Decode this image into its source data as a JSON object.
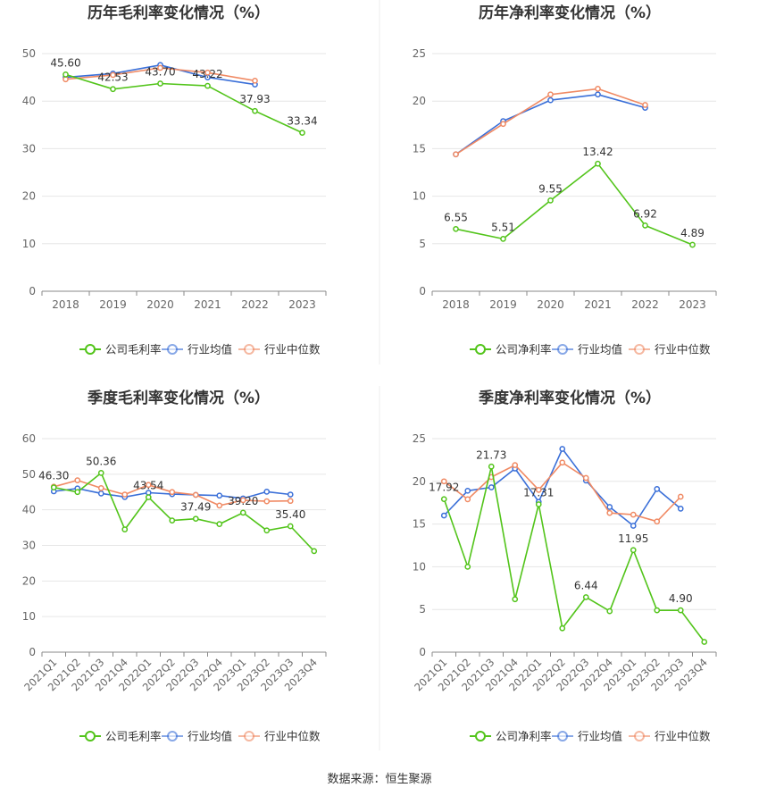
{
  "footer": "数据来源：恒生聚源",
  "colors": {
    "company": "#52c41a",
    "avg": "#3a6fd8",
    "median": "#f08a64"
  },
  "legend_labels": {
    "avg": "行业均值",
    "median": "行业中位数"
  },
  "chart_data": [
    {
      "type": "line",
      "title": "历年毛利率变化情况（%）",
      "categories": [
        "2018",
        "2019",
        "2020",
        "2021",
        "2022",
        "2023"
      ],
      "ylim": [
        0,
        50
      ],
      "yticks": [
        0,
        10,
        20,
        30,
        40,
        50
      ],
      "legend": "bottom",
      "grid": true,
      "series": [
        {
          "name": "公司毛利率",
          "key": "company",
          "values": [
            45.6,
            42.53,
            43.7,
            43.22,
            37.93,
            33.34
          ]
        },
        {
          "name": "行业均值",
          "key": "avg",
          "values": [
            45.0,
            45.8,
            47.6,
            45.0,
            43.5,
            null
          ]
        },
        {
          "name": "行业中位数",
          "key": "median",
          "values": [
            44.6,
            45.5,
            47.0,
            46.0,
            44.3,
            null
          ]
        }
      ],
      "labels": [
        {
          "i": 0,
          "text": "45.60"
        },
        {
          "i": 1,
          "text": "42.53"
        },
        {
          "i": 2,
          "text": "43.70"
        },
        {
          "i": 3,
          "text": "43.22"
        },
        {
          "i": 4,
          "text": "37.93"
        },
        {
          "i": 5,
          "text": "33.34"
        }
      ]
    },
    {
      "type": "line",
      "title": "历年净利率变化情况（%）",
      "categories": [
        "2018",
        "2019",
        "2020",
        "2021",
        "2022",
        "2023"
      ],
      "ylim": [
        0,
        25
      ],
      "yticks": [
        0,
        5,
        10,
        15,
        20,
        25
      ],
      "legend": "bottom",
      "grid": true,
      "series": [
        {
          "name": "公司净利率",
          "key": "company",
          "values": [
            6.55,
            5.51,
            9.55,
            13.42,
            6.92,
            4.89
          ]
        },
        {
          "name": "行业均值",
          "key": "avg",
          "values": [
            14.4,
            17.9,
            20.1,
            20.7,
            19.3,
            null
          ]
        },
        {
          "name": "行业中位数",
          "key": "median",
          "values": [
            14.4,
            17.6,
            20.7,
            21.3,
            19.6,
            null
          ]
        }
      ],
      "labels": [
        {
          "i": 0,
          "text": "6.55"
        },
        {
          "i": 1,
          "text": "5.51"
        },
        {
          "i": 2,
          "text": "9.55"
        },
        {
          "i": 3,
          "text": "13.42"
        },
        {
          "i": 4,
          "text": "6.92"
        },
        {
          "i": 5,
          "text": "4.89"
        }
      ]
    },
    {
      "type": "line",
      "title": "季度毛利率变化情况（%）",
      "categories": [
        "2021Q1",
        "2021Q2",
        "2021Q3",
        "2021Q4",
        "2022Q1",
        "2022Q2",
        "2022Q3",
        "2022Q4",
        "2023Q1",
        "2023Q2",
        "2023Q3",
        "2023Q4"
      ],
      "ylim": [
        0,
        60
      ],
      "yticks": [
        0,
        10,
        20,
        30,
        40,
        50,
        60
      ],
      "legend": "bottom",
      "grid": true,
      "series": [
        {
          "name": "公司毛利率",
          "key": "company",
          "values": [
            46.3,
            45.0,
            50.36,
            34.5,
            43.54,
            37.0,
            37.49,
            36.0,
            39.2,
            34.2,
            35.4,
            28.4
          ]
        },
        {
          "name": "行业均值",
          "key": "avg",
          "values": [
            45.2,
            46.0,
            44.6,
            43.6,
            44.8,
            44.4,
            44.2,
            44.0,
            43.2,
            45.1,
            44.3,
            null
          ]
        },
        {
          "name": "行业中位数",
          "key": "median",
          "values": [
            46.5,
            48.3,
            46.1,
            44.3,
            47.0,
            45.0,
            44.2,
            41.2,
            42.7,
            42.4,
            42.5,
            null
          ]
        }
      ],
      "labels": [
        {
          "i": 0,
          "text": "46.30"
        },
        {
          "i": 2,
          "text": "50.36"
        },
        {
          "i": 4,
          "text": "43.54"
        },
        {
          "i": 6,
          "text": "37.49"
        },
        {
          "i": 8,
          "text": "39.20"
        },
        {
          "i": 10,
          "text": "35.40"
        }
      ]
    },
    {
      "type": "line",
      "title": "季度净利率变化情况（%）",
      "categories": [
        "2021Q1",
        "2021Q2",
        "2021Q3",
        "2021Q4",
        "2022Q1",
        "2022Q2",
        "2022Q3",
        "2022Q4",
        "2023Q1",
        "2023Q2",
        "2023Q3",
        "2023Q4"
      ],
      "ylim": [
        0,
        25
      ],
      "yticks": [
        0,
        5,
        10,
        15,
        20,
        25
      ],
      "legend": "bottom",
      "grid": true,
      "series": [
        {
          "name": "公司净利率",
          "key": "company",
          "values": [
            17.92,
            10.0,
            21.73,
            6.2,
            17.31,
            2.8,
            6.44,
            4.8,
            11.95,
            4.9,
            4.9,
            1.2
          ]
        },
        {
          "name": "行业均值",
          "key": "avg",
          "values": [
            16.0,
            18.9,
            19.3,
            21.5,
            17.6,
            23.8,
            20.1,
            17.0,
            14.8,
            19.1,
            16.8,
            null
          ]
        },
        {
          "name": "行业中位数",
          "key": "median",
          "values": [
            20.0,
            17.9,
            20.5,
            21.9,
            19.0,
            22.2,
            20.4,
            16.3,
            16.1,
            15.3,
            18.2,
            null
          ]
        }
      ],
      "labels": [
        {
          "i": 0,
          "text": "17.92"
        },
        {
          "i": 2,
          "text": "21.73"
        },
        {
          "i": 4,
          "text": "17.31"
        },
        {
          "i": 6,
          "text": "6.44"
        },
        {
          "i": 8,
          "text": "11.95"
        },
        {
          "i": 10,
          "text": "4.90"
        }
      ]
    }
  ]
}
